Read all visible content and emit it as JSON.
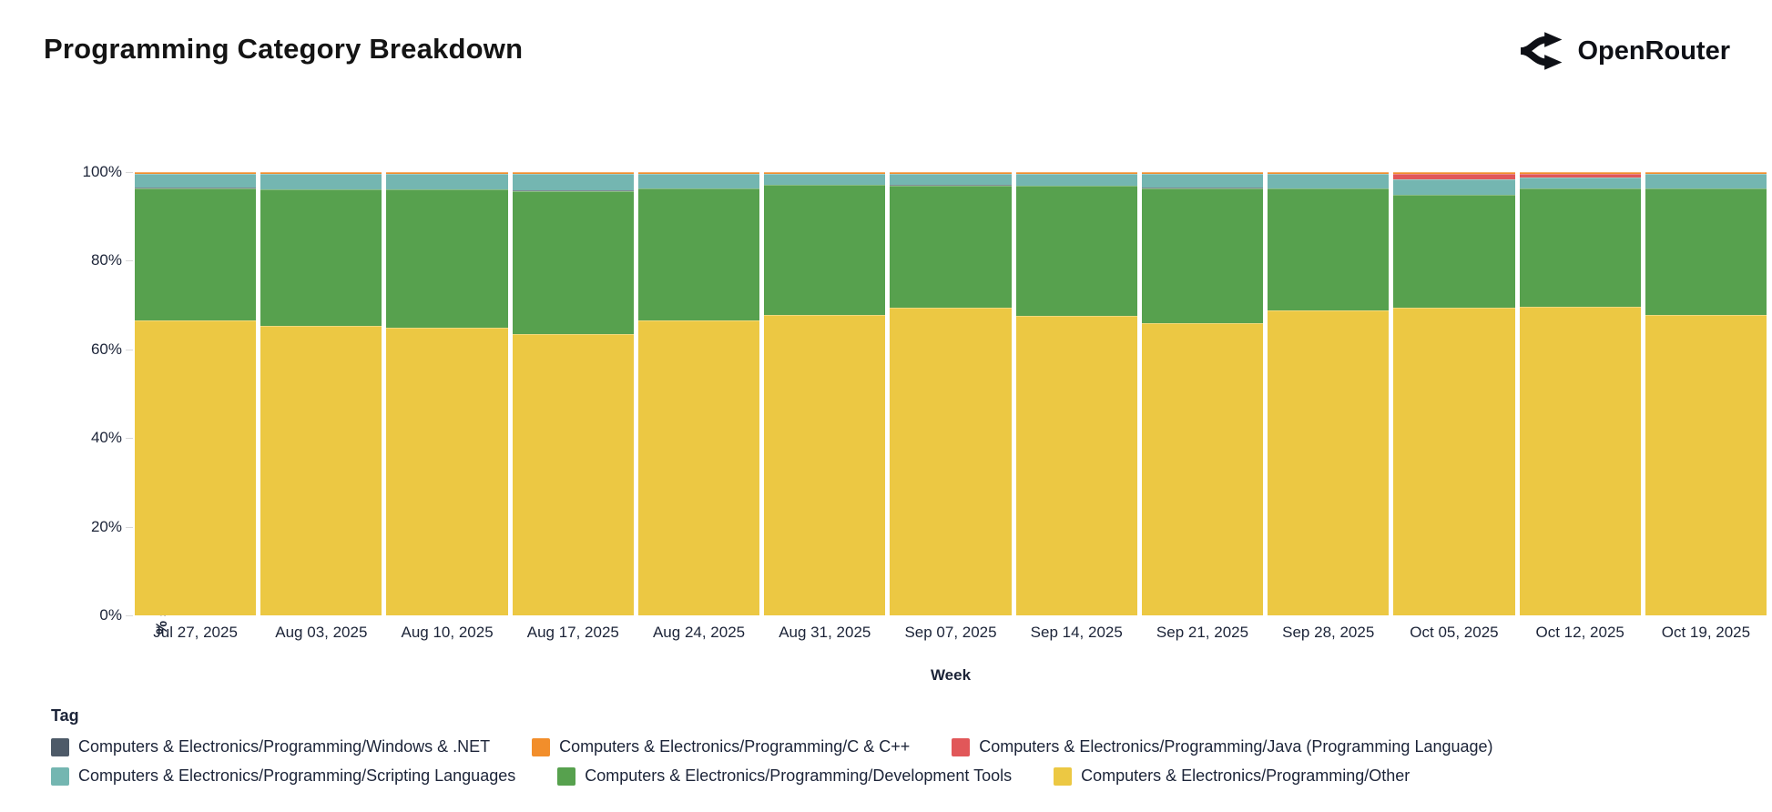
{
  "page": {
    "title": "Programming Category Breakdown",
    "brand": "OpenRouter"
  },
  "chart_data": {
    "type": "bar",
    "stacked": true,
    "normalized_percent": true,
    "title": "Programming Category Breakdown",
    "xlabel": "Week",
    "ylabel": "% share of total tokens",
    "ylim": [
      0,
      100
    ],
    "ytick_step": 20,
    "ytick_labels": [
      "0%",
      "20%",
      "40%",
      "60%",
      "80%",
      "100%"
    ],
    "grid": false,
    "legend_title": "Tag",
    "legend_position": "bottom",
    "categories": [
      "Jul 27, 2025",
      "Aug 03, 2025",
      "Aug 10, 2025",
      "Aug 17, 2025",
      "Aug 24, 2025",
      "Aug 31, 2025",
      "Sep 07, 2025",
      "Sep 14, 2025",
      "Sep 21, 2025",
      "Sep 28, 2025",
      "Oct 05, 2025",
      "Oct 12, 2025",
      "Oct 19, 2025"
    ],
    "series": [
      {
        "name": "Computers & Electronics/Programming/Other",
        "color": "#ecc843",
        "values": [
          66.6,
          65.3,
          64.8,
          63.4,
          66.5,
          67.8,
          69.4,
          67.6,
          66.0,
          68.7,
          69.5,
          69.7,
          67.8
        ]
      },
      {
        "name": "Computers & Electronics/Programming/Development Tools",
        "color": "#57a14e",
        "values": [
          29.8,
          30.7,
          31.2,
          32.3,
          29.7,
          29.3,
          27.6,
          29.3,
          30.4,
          27.5,
          25.3,
          26.6,
          28.4
        ]
      },
      {
        "name": "Computers & Electronics/Programming/Windows & .NET",
        "color": "#4d5a68",
        "pattern": "dots",
        "values": [
          0.1,
          0.1,
          0.1,
          0.1,
          0.1,
          0.1,
          0.1,
          0.1,
          0.1,
          0.1,
          0.1,
          0.1,
          0.1
        ]
      },
      {
        "name": "Computers & Electronics/Programming/Scripting Languages",
        "color": "#74b6b1",
        "values": [
          3.0,
          3.4,
          3.4,
          3.7,
          3.2,
          2.3,
          2.4,
          2.5,
          3.0,
          3.2,
          3.5,
          2.4,
          3.2
        ]
      },
      {
        "name": "Computers & Electronics/Programming/Java (Programming Language)",
        "color": "#e15759",
        "values": [
          0.1,
          0.1,
          0.1,
          0.1,
          0.1,
          0.1,
          0.1,
          0.1,
          0.1,
          0.1,
          1.2,
          0.8,
          0.1
        ]
      },
      {
        "name": "Computers & Electronics/Programming/C & C++",
        "color": "#f28e2b",
        "values": [
          0.4,
          0.4,
          0.4,
          0.4,
          0.4,
          0.4,
          0.4,
          0.4,
          0.4,
          0.4,
          0.4,
          0.4,
          0.4
        ]
      }
    ],
    "legend_rows": [
      [
        2,
        5,
        4
      ],
      [
        3,
        1,
        0
      ]
    ]
  }
}
